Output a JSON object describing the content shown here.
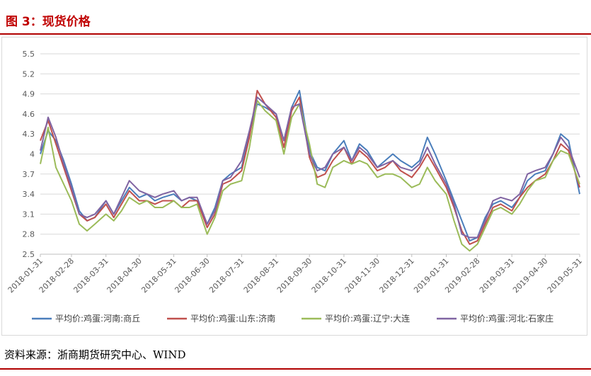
{
  "figure_title": "图 3：现货价格",
  "source": "资料来源：浙商期货研究中心、WIND",
  "chart_data": {
    "type": "line",
    "title": "",
    "xlabel": "",
    "ylabel": "",
    "ylim": [
      2.5,
      5.5
    ],
    "yticks": [
      "5.5",
      "5.2",
      "4.9",
      "4.6",
      "4.3",
      "4",
      "3.7",
      "3.4",
      "3.1",
      "2.8",
      "2.5"
    ],
    "xticks": [
      "2018-01-31",
      "2018-02-28",
      "2018-03-31",
      "2018-04-30",
      "2018-05-31",
      "2018-06-30",
      "2018-07-31",
      "2018-08-31",
      "2018-09-30",
      "2018-10-31",
      "2018-11-30",
      "2018-12-31",
      "2019-01-31",
      "2019-02-28",
      "2019-03-31",
      "2019-04-30",
      "2019-05-31"
    ],
    "grid": true,
    "legend_position": "bottom",
    "x": [
      "2018-01-31",
      "2018-02-07",
      "2018-02-14",
      "2018-02-21",
      "2018-02-28",
      "2018-03-07",
      "2018-03-14",
      "2018-03-21",
      "2018-03-31",
      "2018-04-07",
      "2018-04-14",
      "2018-04-21",
      "2018-04-30",
      "2018-05-07",
      "2018-05-14",
      "2018-05-21",
      "2018-05-31",
      "2018-06-07",
      "2018-06-14",
      "2018-06-21",
      "2018-06-30",
      "2018-07-07",
      "2018-07-14",
      "2018-07-21",
      "2018-07-31",
      "2018-08-07",
      "2018-08-14",
      "2018-08-21",
      "2018-08-31",
      "2018-09-07",
      "2018-09-14",
      "2018-09-21",
      "2018-09-30",
      "2018-10-07",
      "2018-10-14",
      "2018-10-21",
      "2018-10-31",
      "2018-11-07",
      "2018-11-14",
      "2018-11-21",
      "2018-11-30",
      "2018-12-07",
      "2018-12-14",
      "2018-12-21",
      "2018-12-31",
      "2019-01-07",
      "2019-01-14",
      "2019-01-21",
      "2019-01-31",
      "2019-02-07",
      "2019-02-14",
      "2019-02-21",
      "2019-02-28",
      "2019-03-07",
      "2019-03-14",
      "2019-03-21",
      "2019-03-31",
      "2019-04-07",
      "2019-04-14",
      "2019-04-21",
      "2019-04-30",
      "2019-05-07",
      "2019-05-14",
      "2019-05-21",
      "2019-05-31"
    ],
    "series": [
      {
        "name": "平均价:鸡蛋:河南:商丘",
        "color": "#4a7ebb",
        "values": [
          4.0,
          4.35,
          4.2,
          3.9,
          3.55,
          3.15,
          3.0,
          3.05,
          3.3,
          3.1,
          3.3,
          3.5,
          3.35,
          3.4,
          3.3,
          3.35,
          3.4,
          3.3,
          3.35,
          3.3,
          2.95,
          3.2,
          3.6,
          3.7,
          3.8,
          4.3,
          4.75,
          4.7,
          4.6,
          4.2,
          4.7,
          4.95,
          4.05,
          3.8,
          3.75,
          4.0,
          4.2,
          3.9,
          4.15,
          4.05,
          3.8,
          3.9,
          4.0,
          3.9,
          3.8,
          3.9,
          4.25,
          4.0,
          3.6,
          3.3,
          3.0,
          2.7,
          2.75,
          3.05,
          3.25,
          3.3,
          3.2,
          3.35,
          3.6,
          3.7,
          3.75,
          4.0,
          4.3,
          4.2,
          3.4
        ]
      },
      {
        "name": "平均价:鸡蛋:山东:济南",
        "color": "#c0504d",
        "values": [
          4.2,
          4.5,
          4.15,
          3.8,
          3.45,
          3.1,
          3.0,
          3.05,
          3.25,
          3.05,
          3.25,
          3.45,
          3.3,
          3.3,
          3.25,
          3.3,
          3.3,
          3.2,
          3.3,
          3.3,
          2.9,
          3.1,
          3.55,
          3.6,
          3.75,
          4.25,
          4.95,
          4.75,
          4.55,
          4.1,
          4.65,
          4.85,
          3.95,
          3.65,
          3.7,
          3.9,
          4.1,
          3.85,
          4.05,
          3.95,
          3.75,
          3.8,
          3.9,
          3.75,
          3.65,
          3.8,
          4.0,
          3.8,
          3.5,
          3.2,
          2.85,
          2.65,
          2.7,
          2.95,
          3.2,
          3.25,
          3.15,
          3.35,
          3.5,
          3.6,
          3.7,
          3.9,
          4.15,
          4.05,
          3.5
        ]
      },
      {
        "name": "平均价:鸡蛋:辽宁:大连",
        "color": "#9bbb59",
        "values": [
          3.85,
          4.4,
          3.8,
          3.55,
          3.3,
          2.95,
          2.85,
          2.95,
          3.1,
          3.0,
          3.15,
          3.35,
          3.25,
          3.3,
          3.2,
          3.2,
          3.3,
          3.2,
          3.2,
          3.25,
          2.8,
          3.05,
          3.45,
          3.55,
          3.6,
          4.1,
          4.8,
          4.65,
          4.5,
          4.0,
          4.55,
          4.75,
          4.15,
          3.55,
          3.5,
          3.8,
          3.9,
          3.85,
          3.9,
          3.85,
          3.65,
          3.7,
          3.7,
          3.65,
          3.5,
          3.55,
          3.8,
          3.6,
          3.4,
          3.0,
          2.65,
          2.55,
          2.65,
          2.9,
          3.15,
          3.2,
          3.1,
          3.25,
          3.45,
          3.6,
          3.65,
          3.9,
          4.05,
          4.0,
          3.55
        ]
      },
      {
        "name": "平均价:鸡蛋:河北:石家庄",
        "color": "#8064a2",
        "values": [
          4.05,
          4.55,
          4.25,
          3.85,
          3.5,
          3.1,
          3.05,
          3.1,
          3.3,
          3.1,
          3.35,
          3.6,
          3.45,
          3.4,
          3.35,
          3.4,
          3.45,
          3.3,
          3.35,
          3.35,
          2.95,
          3.15,
          3.6,
          3.65,
          3.9,
          4.35,
          4.85,
          4.75,
          4.6,
          4.2,
          4.7,
          4.75,
          4.0,
          3.75,
          3.8,
          4.0,
          4.1,
          3.9,
          4.1,
          4.0,
          3.8,
          3.85,
          3.9,
          3.8,
          3.75,
          3.85,
          4.1,
          3.85,
          3.55,
          3.25,
          2.8,
          2.75,
          2.75,
          3.0,
          3.3,
          3.35,
          3.3,
          3.4,
          3.7,
          3.75,
          3.8,
          4.0,
          4.25,
          4.1,
          3.65
        ]
      }
    ]
  }
}
